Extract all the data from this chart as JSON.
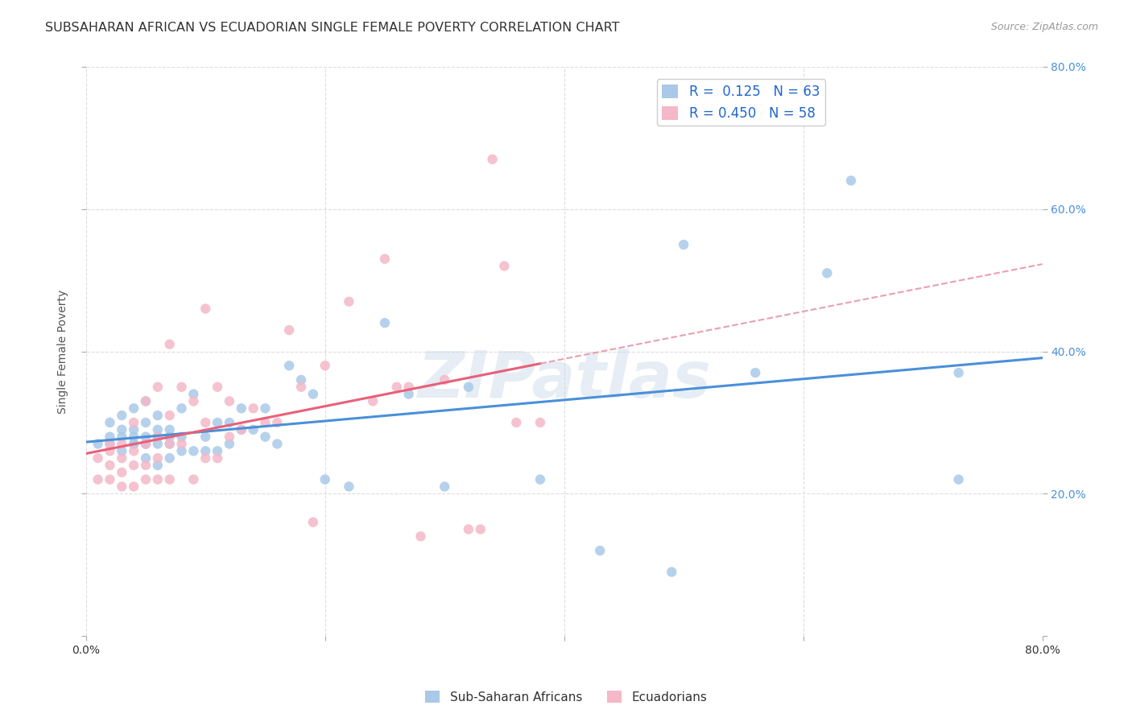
{
  "title": "SUBSAHARAN AFRICAN VS ECUADORIAN SINGLE FEMALE POVERTY CORRELATION CHART",
  "source_text": "Source: ZipAtlas.com",
  "ylabel": "Single Female Poverty",
  "xlim": [
    0.0,
    0.8
  ],
  "ylim": [
    0.0,
    0.8
  ],
  "xticks": [
    0.0,
    0.2,
    0.4,
    0.6,
    0.8
  ],
  "yticks": [
    0.0,
    0.2,
    0.4,
    0.6,
    0.8
  ],
  "xticklabels": [
    "0.0%",
    "",
    "",
    "",
    "80.0%"
  ],
  "yticklabels_right": [
    "",
    "20.0%",
    "40.0%",
    "60.0%",
    "80.0%"
  ],
  "background_color": "#ffffff",
  "grid_color": "#dddddd",
  "watermark_text": "ZIPatlas",
  "legend_R1": "R =  0.125",
  "legend_N1": "N = 63",
  "legend_R2": "R = 0.450",
  "legend_N2": "N = 58",
  "color_blue": "#aac9e8",
  "color_pink": "#f4b8c8",
  "color_blue_line": "#4a90d9",
  "color_pink_line": "#e8607a",
  "color_pink_dash": "#e8a0b0",
  "title_fontsize": 11.5,
  "label_fontsize": 10,
  "tick_fontsize": 10,
  "scatter_size": 80,
  "blue_scatter_x": [
    0.01,
    0.02,
    0.02,
    0.02,
    0.03,
    0.03,
    0.03,
    0.03,
    0.04,
    0.04,
    0.04,
    0.04,
    0.04,
    0.05,
    0.05,
    0.05,
    0.05,
    0.05,
    0.05,
    0.06,
    0.06,
    0.06,
    0.06,
    0.06,
    0.07,
    0.07,
    0.07,
    0.07,
    0.08,
    0.08,
    0.08,
    0.09,
    0.09,
    0.1,
    0.1,
    0.11,
    0.11,
    0.12,
    0.12,
    0.13,
    0.13,
    0.14,
    0.15,
    0.15,
    0.16,
    0.17,
    0.18,
    0.19,
    0.2,
    0.22,
    0.25,
    0.27,
    0.3,
    0.32,
    0.38,
    0.43,
    0.49,
    0.5,
    0.56,
    0.62,
    0.64,
    0.73,
    0.73
  ],
  "blue_scatter_y": [
    0.27,
    0.27,
    0.28,
    0.3,
    0.26,
    0.28,
    0.29,
    0.31,
    0.27,
    0.27,
    0.28,
    0.29,
    0.32,
    0.25,
    0.27,
    0.27,
    0.28,
    0.3,
    0.33,
    0.24,
    0.27,
    0.28,
    0.29,
    0.31,
    0.25,
    0.27,
    0.28,
    0.29,
    0.26,
    0.28,
    0.32,
    0.26,
    0.34,
    0.26,
    0.28,
    0.26,
    0.3,
    0.27,
    0.3,
    0.29,
    0.32,
    0.29,
    0.28,
    0.32,
    0.27,
    0.38,
    0.36,
    0.34,
    0.22,
    0.21,
    0.44,
    0.34,
    0.21,
    0.35,
    0.22,
    0.12,
    0.09,
    0.55,
    0.37,
    0.51,
    0.64,
    0.22,
    0.37
  ],
  "pink_scatter_x": [
    0.01,
    0.01,
    0.02,
    0.02,
    0.02,
    0.02,
    0.03,
    0.03,
    0.03,
    0.03,
    0.04,
    0.04,
    0.04,
    0.04,
    0.05,
    0.05,
    0.05,
    0.05,
    0.06,
    0.06,
    0.06,
    0.06,
    0.07,
    0.07,
    0.07,
    0.07,
    0.08,
    0.08,
    0.09,
    0.09,
    0.1,
    0.1,
    0.11,
    0.11,
    0.12,
    0.12,
    0.13,
    0.14,
    0.15,
    0.16,
    0.17,
    0.18,
    0.19,
    0.2,
    0.22,
    0.24,
    0.25,
    0.26,
    0.27,
    0.28,
    0.3,
    0.32,
    0.33,
    0.34,
    0.35,
    0.36,
    0.38,
    0.1
  ],
  "pink_scatter_y": [
    0.22,
    0.25,
    0.22,
    0.24,
    0.26,
    0.27,
    0.21,
    0.23,
    0.25,
    0.27,
    0.21,
    0.24,
    0.26,
    0.3,
    0.22,
    0.24,
    0.27,
    0.33,
    0.22,
    0.25,
    0.28,
    0.35,
    0.22,
    0.27,
    0.31,
    0.41,
    0.27,
    0.35,
    0.22,
    0.33,
    0.25,
    0.3,
    0.25,
    0.35,
    0.28,
    0.33,
    0.29,
    0.32,
    0.3,
    0.3,
    0.43,
    0.35,
    0.16,
    0.38,
    0.47,
    0.33,
    0.53,
    0.35,
    0.35,
    0.14,
    0.36,
    0.15,
    0.15,
    0.67,
    0.52,
    0.3,
    0.3,
    0.46
  ]
}
